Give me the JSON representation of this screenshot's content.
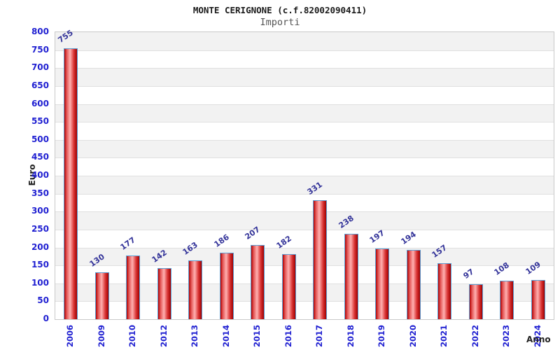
{
  "header": {
    "title": "MONTE CERIGNONE (c.f.82002090411)",
    "subtitle": "Importi"
  },
  "chart_data": {
    "type": "bar",
    "title": "MONTE CERIGNONE (c.f.82002090411)",
    "subtitle": "Importi",
    "xlabel": "Anno",
    "ylabel": "Euro",
    "categories": [
      "2006",
      "2009",
      "2010",
      "2012",
      "2013",
      "2014",
      "2015",
      "2016",
      "2017",
      "2018",
      "2019",
      "2020",
      "2021",
      "2022",
      "2023",
      "2024"
    ],
    "values": [
      755,
      130,
      177,
      142,
      163,
      186,
      207,
      182,
      331,
      238,
      197,
      194,
      157,
      97,
      108,
      109
    ],
    "ylim": [
      0,
      800
    ],
    "ytick_step": 50,
    "grid": "horizontal-bands-alternating",
    "legend": "none",
    "colors": {
      "bar_fill_gradient": [
        "#b20000",
        "#e25555",
        "#ffb0b0",
        "#d93333",
        "#9e0000"
      ],
      "bar_border": "#5b9fd4",
      "tick_label": "#1f1fd1",
      "value_label": "#333399",
      "band_gray": "#f2f2f2",
      "band_white": "#ffffff",
      "grid_line": "#e0e0e0",
      "plot_border": "#c9c9c9",
      "title_color": "#1a1a1a",
      "subtitle_color": "#555555",
      "axis_label_color": "#222222"
    }
  }
}
